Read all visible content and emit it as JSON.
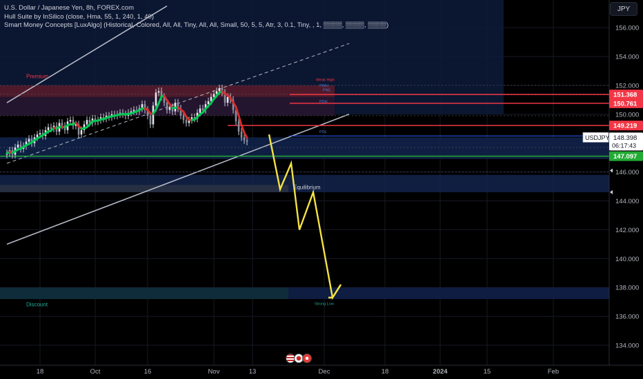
{
  "legend": {
    "title": "U.S. Dollar / Japanese Yen, 8h, FOREX.com",
    "indicator1": "Hull Suite by InSilico (close, Hma, 55, 1, 240, 1, 40)",
    "indicator2": "Smart Money Concepts [LuxAlgo] (Historical, Colored, All, All, Tiny, All, All, Small, 50, 5, 5, Atr, 3, 0.1, Tiny, , 1, ▒▒▒▒, ▒▒▒▒, ▒▒▒▒)"
  },
  "currency_button": "JPY",
  "colors": {
    "background": "#000000",
    "grid": "#161a25",
    "bull": "#00c853",
    "bear": "#e53935",
    "hull_up": "#00c853",
    "hull_down": "#d32f2f",
    "forecast": "#f5e342",
    "channel": "#b5b8c4",
    "level_red": "#f23645",
    "level_green": "#22ab34",
    "premium_text": "#f23645",
    "discount_text": "#22ab94"
  },
  "chart_data": {
    "type": "candlestick",
    "symbol": "USDJPY",
    "timeframe": "8h",
    "y_axis": {
      "min": 132.8,
      "max": 157.5,
      "ticks": [
        134,
        136,
        138,
        140,
        142,
        144,
        146,
        148,
        150,
        152,
        154,
        156
      ],
      "tick_labels": [
        "134.000",
        "136.000",
        "138.000",
        "140.000",
        "142.000",
        "144.000",
        "146.000",
        "148.000",
        "150.000",
        "152.000",
        "154.000",
        "156.000"
      ]
    },
    "x_axis": {
      "labels": [
        "18",
        "Oct",
        "16",
        "Nov",
        "13",
        "Dec",
        "18",
        "2024",
        "15",
        "Feb"
      ],
      "label_index": [
        0,
        20,
        39,
        63,
        77,
        103,
        125,
        145,
        162,
        186
      ],
      "bold": [
        "2024"
      ]
    },
    "candle_range_index": [
      -12,
      86
    ],
    "closes": [
      147.3,
      147.5,
      147.2,
      147.7,
      147.9,
      147.6,
      147.8,
      148.1,
      148.3,
      148.0,
      148.4,
      148.6,
      148.7,
      148.5,
      148.9,
      149.1,
      149.0,
      149.2,
      148.8,
      149.4,
      149.2,
      148.9,
      149.5,
      149.6,
      149.2,
      149.3,
      148.6,
      148.9,
      149.3,
      149.6,
      149.4,
      149.7,
      149.5,
      149.6,
      149.8,
      149.7,
      149.9,
      149.8,
      150.0,
      149.9,
      150.0,
      150.1,
      150.0,
      149.9,
      150.1,
      150.2,
      150.3,
      150.2,
      150.4,
      150.7,
      150.3,
      149.9,
      149.3,
      150.6,
      151.5,
      151.6,
      151.2,
      150.8,
      150.3,
      150.5,
      150.2,
      150.8,
      150.4,
      149.9,
      149.6,
      149.4,
      149.6,
      149.8,
      149.7,
      150.1,
      150.4,
      150.3,
      150.7,
      150.9,
      151.2,
      151.4,
      151.6,
      151.8,
      151.5,
      150.8,
      151.2,
      151.0,
      150.3,
      149.5,
      148.8,
      148.4,
      148.2,
      148.1
    ],
    "level_lines": [
      {
        "value": 151.368,
        "label": "151.368",
        "color": "#f23645"
      },
      {
        "value": 150.761,
        "label": "150.761",
        "color": "#f23645"
      },
      {
        "value": 149.219,
        "label": "149.219",
        "color": "#f23645"
      },
      {
        "value": 147.097,
        "label": "147.097",
        "color": "#22ab34"
      }
    ],
    "last_price": {
      "symbol": "USDJPY",
      "price": "148.398",
      "countdown": "06:17:43",
      "value": 148.398
    },
    "zones": [
      {
        "name": "Premium",
        "from": 151.2,
        "to": 152.0
      },
      {
        "name": "Equilibrium",
        "from": 144.6,
        "to": 145.8
      },
      {
        "name": "Discount",
        "from": 137.2,
        "to": 138.0
      }
    ],
    "annotations": [
      "Premium",
      "Equilibrium",
      "Discount",
      "Weak High",
      "Strong Low",
      "PWH",
      "PDH",
      "PWL",
      "PDL"
    ],
    "channel": {
      "upper": [
        [
          -12,
          150.8
        ],
        [
          46,
          157.5
        ]
      ],
      "middle": [
        [
          -12,
          146.6
        ],
        [
          112,
          154.9
        ]
      ],
      "lower": [
        [
          -12,
          141.0
        ],
        [
          112,
          150.0
        ]
      ]
    },
    "forecast_path": [
      [
        83,
        148.6
      ],
      [
        87,
        144.8
      ],
      [
        91,
        146.6
      ],
      [
        94,
        142.0
      ],
      [
        99,
        144.6
      ],
      [
        106,
        137.3
      ],
      [
        109,
        138.2
      ]
    ]
  }
}
